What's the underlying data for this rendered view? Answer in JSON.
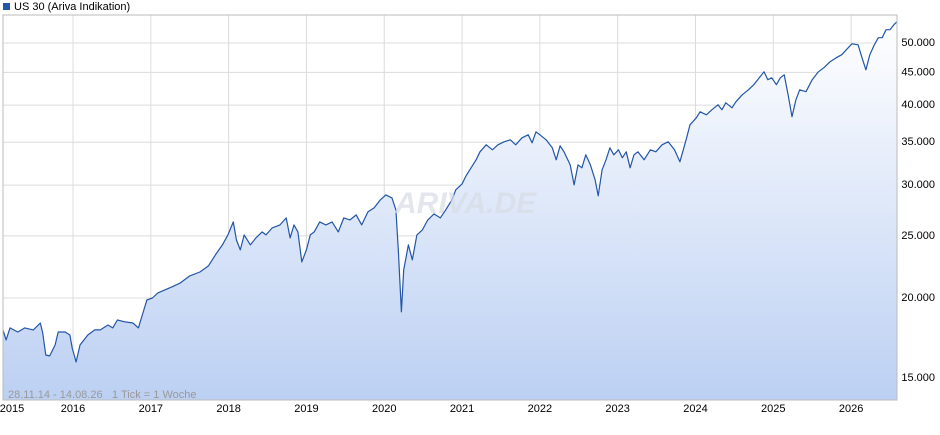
{
  "chart_data": {
    "type": "line",
    "log_scale": true,
    "grid": true,
    "legend_position": "top-left",
    "watermark": "ARIVA.DE",
    "date_range": "28.11.14 - 14.08.26",
    "tick_note": "1 Tick = 1 Woche",
    "xlim": [
      2015.1,
      2026.59
    ],
    "ylim": [
      13860,
      55300
    ],
    "xticks": [
      2015,
      2016,
      2017,
      2018,
      2019,
      2020,
      2021,
      2022,
      2023,
      2024,
      2025,
      2026
    ],
    "yticks": [
      {
        "value": 15000,
        "label": "15.000"
      },
      {
        "value": 20000,
        "label": "20.000"
      },
      {
        "value": 25000,
        "label": "25.000"
      },
      {
        "value": 30000,
        "label": "30.000"
      },
      {
        "value": 35000,
        "label": "35.000"
      },
      {
        "value": 40000,
        "label": "40.000"
      },
      {
        "value": 45000,
        "label": "45.000"
      },
      {
        "value": 50000,
        "label": "50.000"
      }
    ],
    "x": [
      2015.1,
      2015.14,
      2015.19,
      2015.29,
      2015.38,
      2015.49,
      2015.58,
      2015.61,
      2015.65,
      2015.7,
      2015.77,
      2015.81,
      2015.9,
      2015.96,
      2015.99,
      2016.04,
      2016.09,
      2016.19,
      2016.28,
      2016.35,
      2016.45,
      2016.51,
      2016.57,
      2016.67,
      2016.77,
      2016.84,
      2016.89,
      2016.95,
      2017.02,
      2017.09,
      2017.18,
      2017.27,
      2017.38,
      2017.5,
      2017.63,
      2017.74,
      2017.83,
      2017.92,
      2017.99,
      2018.06,
      2018.1,
      2018.15,
      2018.2,
      2018.28,
      2018.35,
      2018.43,
      2018.48,
      2018.56,
      2018.66,
      2018.74,
      2018.79,
      2018.84,
      2018.89,
      2018.94,
      2019.0,
      2019.05,
      2019.1,
      2019.17,
      2019.25,
      2019.33,
      2019.41,
      2019.48,
      2019.56,
      2019.64,
      2019.71,
      2019.79,
      2019.87,
      2019.95,
      2020.02,
      2020.1,
      2020.15,
      2020.18,
      2020.22,
      2020.25,
      2020.31,
      2020.36,
      2020.42,
      2020.49,
      2020.56,
      2020.64,
      2020.72,
      2020.79,
      2020.87,
      2020.92,
      2021.0,
      2021.05,
      2021.1,
      2021.18,
      2021.23,
      2021.31,
      2021.39,
      2021.46,
      2021.54,
      2021.62,
      2021.69,
      2021.77,
      2021.85,
      2021.9,
      2021.95,
      2022.0,
      2022.08,
      2022.16,
      2022.21,
      2022.26,
      2022.31,
      2022.39,
      2022.44,
      2022.49,
      2022.54,
      2022.59,
      2022.65,
      2022.71,
      2022.75,
      2022.8,
      2022.85,
      2022.9,
      2022.95,
      2023.01,
      2023.06,
      2023.11,
      2023.16,
      2023.21,
      2023.26,
      2023.34,
      2023.42,
      2023.49,
      2023.57,
      2023.65,
      2023.73,
      2023.8,
      2023.88,
      2023.93,
      2024.01,
      2024.06,
      2024.14,
      2024.21,
      2024.29,
      2024.34,
      2024.39,
      2024.47,
      2024.52,
      2024.6,
      2024.68,
      2024.75,
      2024.8,
      2024.88,
      2024.93,
      2024.98,
      2025.04,
      2025.09,
      2025.14,
      2025.19,
      2025.24,
      2025.29,
      2025.34,
      2025.42,
      2025.5,
      2025.58,
      2025.65,
      2025.73,
      2025.81,
      2025.88,
      2025.94,
      2026.01,
      2026.09,
      2026.14,
      2026.19,
      2026.24,
      2026.3,
      2026.35,
      2026.4,
      2026.45,
      2026.5,
      2026.55,
      2026.59
    ],
    "series": [
      {
        "name": "US 30 (Ariva Indikation)",
        "color": "#2356a8",
        "values": [
          17830,
          17200,
          17960,
          17700,
          17960,
          17830,
          18280,
          17640,
          16290,
          16240,
          16890,
          17700,
          17700,
          17510,
          16710,
          15890,
          16890,
          17510,
          17830,
          17830,
          18150,
          17960,
          18480,
          18350,
          18280,
          17960,
          18810,
          19860,
          20000,
          20370,
          20590,
          20810,
          21110,
          21650,
          21960,
          22440,
          23350,
          24200,
          25090,
          26290,
          24640,
          23770,
          25090,
          24200,
          24820,
          25360,
          25090,
          25730,
          26010,
          26670,
          24820,
          26010,
          25360,
          22770,
          23770,
          25090,
          25360,
          26290,
          26010,
          26290,
          25360,
          26670,
          26480,
          26960,
          26010,
          27250,
          27650,
          28460,
          28970,
          28660,
          27450,
          23770,
          19020,
          22120,
          24200,
          22930,
          25090,
          25540,
          26480,
          27060,
          26670,
          27450,
          28460,
          29500,
          30140,
          31020,
          31700,
          32860,
          33820,
          34680,
          34060,
          34680,
          35060,
          35310,
          34680,
          35570,
          35950,
          34930,
          36340,
          35950,
          35310,
          34310,
          32860,
          34560,
          33820,
          32270,
          30030,
          32270,
          31930,
          33460,
          32270,
          30580,
          28870,
          31700,
          32860,
          34310,
          33460,
          34060,
          33100,
          33820,
          31930,
          33460,
          33820,
          32860,
          34060,
          33820,
          34680,
          35060,
          34060,
          32630,
          35310,
          37270,
          38220,
          39050,
          38630,
          39330,
          40050,
          39330,
          40340,
          39620,
          40480,
          41510,
          42270,
          43040,
          43820,
          45090,
          43820,
          44130,
          43040,
          44130,
          44610,
          41510,
          38350,
          40770,
          42270,
          41970,
          43820,
          45090,
          45750,
          46750,
          47430,
          47940,
          48810,
          49870,
          49690,
          47430,
          45420,
          47940,
          49690,
          50960,
          50960,
          52450,
          52450,
          53400,
          53980
        ]
      }
    ]
  }
}
